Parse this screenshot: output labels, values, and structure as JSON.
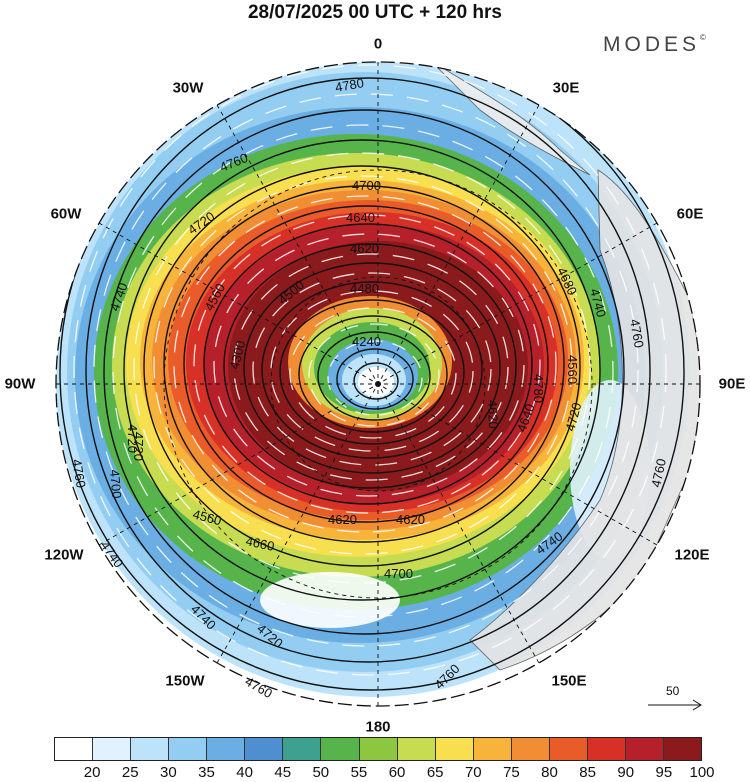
{
  "header": {
    "title": "28/07/2025  00 UTC  + 120 hrs",
    "brand": "MODES",
    "brand_mark": "©"
  },
  "longitude_labels": [
    {
      "key": "0",
      "text": "0"
    },
    {
      "key": "30E",
      "text": "30E"
    },
    {
      "key": "60E",
      "text": "60E"
    },
    {
      "key": "90E",
      "text": "90E"
    },
    {
      "key": "120E",
      "text": "120E"
    },
    {
      "key": "150E",
      "text": "150E"
    },
    {
      "key": "180",
      "text": "180"
    },
    {
      "key": "150W",
      "text": "150W"
    },
    {
      "key": "120W",
      "text": "120W"
    },
    {
      "key": "90W",
      "text": "90W"
    },
    {
      "key": "60W",
      "text": "60W"
    },
    {
      "key": "30W",
      "text": "30W"
    }
  ],
  "contour_labels": [
    "4780",
    "4760",
    "4700",
    "4720",
    "4640",
    "4740",
    "4760",
    "4740",
    "4680",
    "4620",
    "4560",
    "4500",
    "4480",
    "4240",
    "4300",
    "4720",
    "4780",
    "4620",
    "4560",
    "4640",
    "4720",
    "4760",
    "4740",
    "4720",
    "4760",
    "4700",
    "4560",
    "4660",
    "4620",
    "4620",
    "4740",
    "4700",
    "4720",
    "4760",
    "4760",
    "4740"
  ],
  "reference_vector": {
    "label": "50"
  },
  "colorbar": {
    "colors": [
      "#ffffff",
      "#dff2fd",
      "#bde3fa",
      "#93cdf2",
      "#6aaee3",
      "#4d8fcf",
      "#3ea18f",
      "#56b44a",
      "#8dc63f",
      "#c8dc52",
      "#f8df4f",
      "#f7b33a",
      "#f18d33",
      "#ea5b2a",
      "#d73027",
      "#b5202a",
      "#8a1a1c"
    ],
    "ticks": [
      "20",
      "25",
      "30",
      "35",
      "40",
      "45",
      "50",
      "55",
      "60",
      "65",
      "70",
      "75",
      "80",
      "85",
      "90",
      "95",
      "100"
    ]
  },
  "colors": {
    "map_border": "#111111",
    "contour": "#111111",
    "streamline": "#ffffff",
    "land": "#d9d9d9"
  }
}
